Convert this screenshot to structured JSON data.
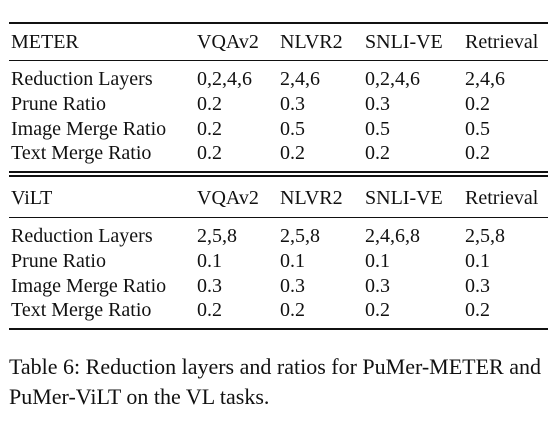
{
  "table": {
    "sections": [
      {
        "header": [
          "METER",
          "VQAv2",
          "NLVR2",
          "SNLI-VE",
          "Retrieval"
        ],
        "rows": [
          [
            "Reduction Layers",
            "0,2,4,6",
            "2,4,6",
            "0,2,4,6",
            "2,4,6"
          ],
          [
            "Prune Ratio",
            "0.2",
            "0.3",
            "0.3",
            "0.2"
          ],
          [
            "Image Merge Ratio",
            "0.2",
            "0.5",
            "0.5",
            "0.5"
          ],
          [
            "Text Merge Ratio",
            "0.2",
            "0.2",
            "0.2",
            "0.2"
          ]
        ]
      },
      {
        "header": [
          "ViLT",
          "VQAv2",
          "NLVR2",
          "SNLI-VE",
          "Retrieval"
        ],
        "rows": [
          [
            "Reduction Layers",
            "2,5,8",
            "2,5,8",
            "2,4,6,8",
            "2,5,8"
          ],
          [
            "Prune Ratio",
            "0.1",
            "0.1",
            "0.1",
            "0.1"
          ],
          [
            "Image Merge Ratio",
            "0.3",
            "0.3",
            "0.3",
            "0.3"
          ],
          [
            "Text Merge Ratio",
            "0.2",
            "0.2",
            "0.2",
            "0.2"
          ]
        ]
      }
    ]
  },
  "caption": "Table 6: Reduction layers and ratios for PuMer-METER and PuMer-ViLT on the VL tasks."
}
